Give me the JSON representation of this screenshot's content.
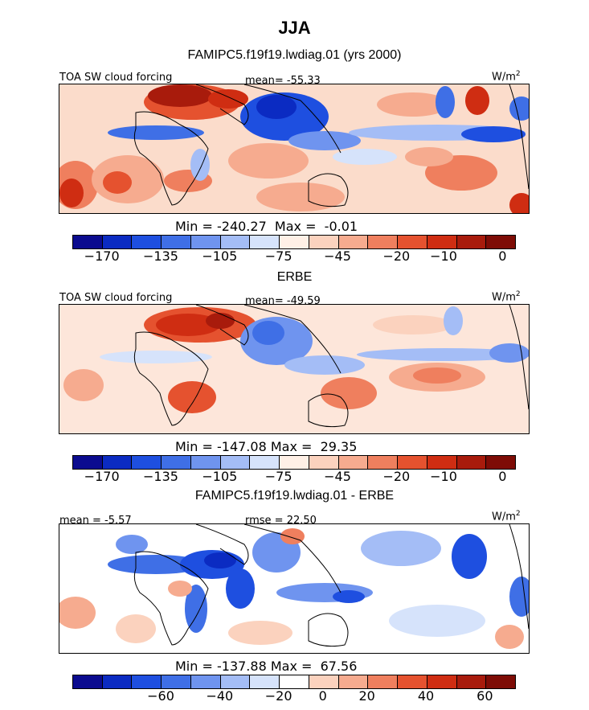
{
  "figure": {
    "season": "JJA",
    "units_base": "W/m",
    "units_exp": "2"
  },
  "palette": {
    "absolute": [
      "#0b0b8f",
      "#0b2bc2",
      "#1e4fe0",
      "#3f6fe6",
      "#6f94ef",
      "#a4bdf6",
      "#d6e3fb",
      "#fff0e6",
      "#fbd2be",
      "#f6ab8f",
      "#ef7f5e",
      "#e5522f",
      "#cf2d12",
      "#a81b0c",
      "#7e0c06"
    ],
    "difference": [
      "#0b0b8f",
      "#0b2bc2",
      "#1e4fe0",
      "#3f6fe6",
      "#6f94ef",
      "#a4bdf6",
      "#d6e3fb",
      "#ffffff",
      "#fbd2be",
      "#f6ab8f",
      "#ef7f5e",
      "#e5522f",
      "#cf2d12",
      "#a81b0c",
      "#7e0c06"
    ]
  },
  "chart_data": [
    {
      "type": "heatmap",
      "title": "FAMIPC5.f19f19.lwdiag.01 (yrs 2000)",
      "variable": "TOA SW cloud forcing",
      "mean_label": "mean=",
      "mean": "-55.33",
      "min_label": "Min =",
      "min": "-240.27",
      "max_label": "Max =",
      "max": "-0.01",
      "colorbar_ticks": [
        "-170",
        "-135",
        "-105",
        "-75",
        "-45",
        "-20",
        "-10",
        "0"
      ]
    },
    {
      "type": "heatmap",
      "title": "ERBE",
      "variable": "TOA SW cloud forcing",
      "mean_label": "mean=",
      "mean": "-49.59",
      "min_label": "Min =",
      "min": "-147.08",
      "max_label": "Max =",
      "max": "29.35",
      "colorbar_ticks": [
        "-170",
        "-135",
        "-105",
        "-75",
        "-45",
        "-20",
        "-10",
        "0"
      ]
    },
    {
      "type": "heatmap",
      "title": "FAMIPC5.f19f19.lwdiag.01 - ERBE",
      "mean_label": "mean =",
      "mean": "-5.57",
      "rmse_label": "rmse =",
      "rmse": "22.50",
      "min_label": "Min =",
      "min": "-137.88",
      "max_label": "Max =",
      "max": "67.56",
      "colorbar_ticks": [
        "-60",
        "-40",
        "-20",
        "0",
        "20",
        "40",
        "60"
      ]
    }
  ]
}
